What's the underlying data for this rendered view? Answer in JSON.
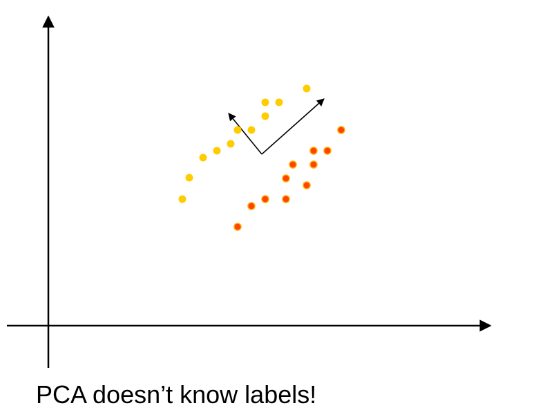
{
  "caption": "PCA doesn’t know labels!",
  "chart_data": {
    "type": "scatter",
    "title": "",
    "xlabel": "",
    "ylabel": "",
    "grid": false,
    "legend": "none",
    "series": [
      {
        "color": "#ffcc00",
        "points": [
          [
            194,
            183
          ],
          [
            204,
            214
          ],
          [
            224,
            243
          ],
          [
            244,
            253
          ],
          [
            264,
            263
          ],
          [
            274,
            283
          ],
          [
            294,
            283
          ],
          [
            314,
            303
          ],
          [
            314,
            323
          ],
          [
            334,
            323
          ],
          [
            374,
            343
          ]
        ]
      },
      {
        "color": "#ff4400",
        "points": [
          [
            274,
            143
          ],
          [
            294,
            173
          ],
          [
            314,
            183
          ],
          [
            344,
            183
          ],
          [
            344,
            213
          ],
          [
            354,
            233
          ],
          [
            374,
            203
          ],
          [
            384,
            233
          ],
          [
            384,
            253
          ],
          [
            404,
            253
          ],
          [
            424,
            283
          ]
        ]
      }
    ],
    "arrows": [
      {
        "from": [
          309,
          248
        ],
        "to": [
          261,
          307
        ]
      },
      {
        "from": [
          309,
          248
        ],
        "to": [
          399,
          328
        ]
      }
    ]
  }
}
